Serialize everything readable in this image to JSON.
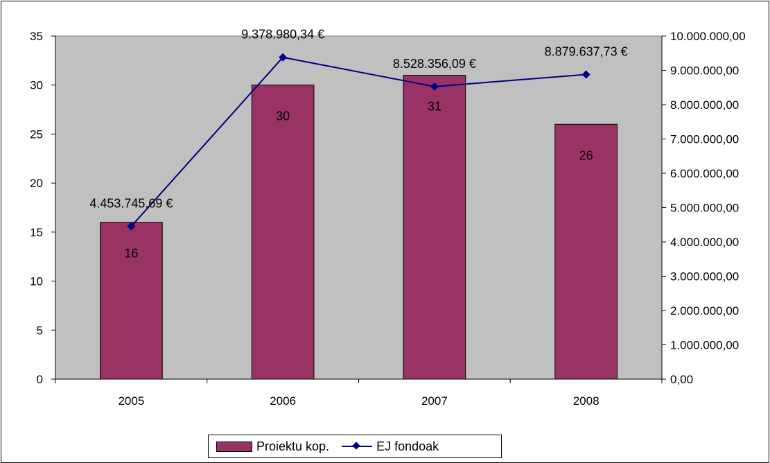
{
  "colors": {
    "plot_background": "#c0c0c0",
    "bar_fill": "#993366",
    "line_color": "#000080"
  },
  "legend": {
    "bar_label": "Proiektu kop.",
    "line_label": "EJ fondoak"
  },
  "chart_data": {
    "type": "bar",
    "title": "",
    "categories": [
      "2005",
      "2006",
      "2007",
      "2008"
    ],
    "series": [
      {
        "name": "Proiektu kop.",
        "kind": "bar",
        "axis": "left",
        "values": [
          16,
          30,
          31,
          26
        ],
        "data_labels": [
          "16",
          "30",
          "31",
          "26"
        ]
      },
      {
        "name": "EJ fondoak",
        "kind": "line",
        "axis": "right",
        "marker": "diamond",
        "values": [
          4453745.69,
          9378980.34,
          8528356.09,
          8879637.73
        ],
        "data_labels": [
          "4.453.745,69 €",
          "9.378.980,34 €",
          "8.528.356,09 €",
          "8.879.637,73 €"
        ]
      }
    ],
    "y_left": {
      "ylim": [
        0,
        35
      ],
      "ticks": [
        0,
        5,
        10,
        15,
        20,
        25,
        30,
        35
      ],
      "tick_labels": [
        "0",
        "5",
        "10",
        "15",
        "20",
        "25",
        "30",
        "35"
      ]
    },
    "y_right": {
      "ylim": [
        0,
        10000000
      ],
      "ticks": [
        0,
        1000000,
        2000000,
        3000000,
        4000000,
        5000000,
        6000000,
        7000000,
        8000000,
        9000000,
        10000000
      ],
      "tick_labels": [
        "0,00",
        "1.000.000,00",
        "2.000.000,00",
        "3.000.000,00",
        "4.000.000,00",
        "5.000.000,00",
        "6.000.000,00",
        "7.000.000,00",
        "8.000.000,00",
        "9.000.000,00",
        "10.000.000,00"
      ]
    },
    "grid": false,
    "legend_position": "bottom"
  }
}
